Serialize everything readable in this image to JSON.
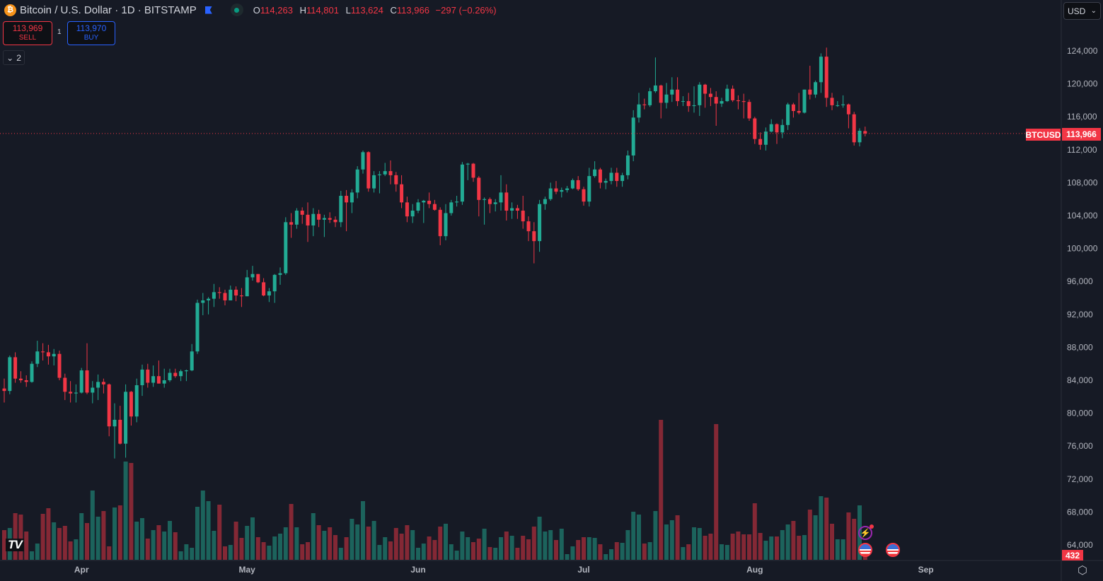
{
  "header": {
    "symbol_icon": "bitcoin-icon",
    "title": "Bitcoin / U.S. Dollar · 1D · BITSTAMP",
    "ohlc": {
      "o_label": "O",
      "o": "114,263",
      "h_label": "H",
      "h": "114,801",
      "l_label": "L",
      "l": "113,624",
      "c_label": "C",
      "c": "113,966",
      "change": "−297 (−0.26%)"
    }
  },
  "trade": {
    "sell_price": "113,969",
    "sell_label": "SELL",
    "qty": "1",
    "buy_price": "113,970",
    "buy_label": "BUY"
  },
  "indicators_toggle": "2",
  "currency": "USD",
  "price_label": {
    "symbol": "BTCUSD",
    "value": "113,966"
  },
  "volume_label": "432",
  "colors": {
    "up": "#22ab94",
    "down": "#f23645",
    "background": "#161a25"
  },
  "chart_data": {
    "type": "candlestick",
    "unit": "USD thousands",
    "ylim": [
      64,
      124
    ],
    "yticks": [
      "124,000",
      "120,000",
      "116,000",
      "112,000",
      "108,000",
      "104,000",
      "100,000",
      "96,000",
      "92,000",
      "88,000",
      "84,000",
      "80,000",
      "76,000",
      "72,000",
      "68,000",
      "64,000"
    ],
    "ytick_values": [
      124,
      120,
      116,
      112,
      108,
      104,
      100,
      96,
      92,
      88,
      84,
      80,
      76,
      72,
      68,
      64
    ],
    "xticks": [
      {
        "label": "Apr",
        "index": 14
      },
      {
        "label": "May",
        "index": 44
      },
      {
        "label": "Jun",
        "index": 75
      },
      {
        "label": "Jul",
        "index": 105
      },
      {
        "label": "Aug",
        "index": 136
      },
      {
        "label": "Sep",
        "index": 167
      }
    ],
    "last_price": 113.966,
    "candles": [
      [
        83.0,
        84.2,
        81.3,
        82.7
      ],
      [
        82.7,
        87.0,
        82.3,
        86.8
      ],
      [
        86.8,
        87.4,
        83.7,
        84.2
      ],
      [
        84.2,
        85.1,
        83.7,
        84.0
      ],
      [
        84.0,
        84.6,
        83.2,
        83.8
      ],
      [
        83.8,
        86.3,
        83.7,
        86.0
      ],
      [
        86.0,
        88.8,
        85.6,
        87.5
      ],
      [
        87.5,
        88.5,
        86.4,
        87.4
      ],
      [
        87.4,
        88.3,
        85.9,
        86.9
      ],
      [
        86.9,
        87.8,
        85.8,
        87.2
      ],
      [
        87.2,
        87.6,
        84.0,
        84.3
      ],
      [
        84.3,
        84.8,
        81.6,
        82.6
      ],
      [
        82.6,
        83.9,
        81.3,
        82.4
      ],
      [
        82.4,
        83.5,
        81.3,
        82.5
      ],
      [
        82.5,
        85.5,
        82.4,
        85.2
      ],
      [
        85.2,
        88.5,
        82.3,
        82.5
      ],
      [
        82.5,
        83.9,
        81.2,
        83.1
      ],
      [
        83.1,
        84.7,
        81.6,
        83.8
      ],
      [
        83.8,
        84.2,
        82.4,
        83.5
      ],
      [
        83.5,
        83.6,
        77.2,
        78.4
      ],
      [
        78.4,
        81.2,
        74.5,
        79.2
      ],
      [
        79.2,
        80.9,
        76.2,
        76.3
      ],
      [
        76.3,
        83.5,
        74.6,
        82.6
      ],
      [
        82.6,
        82.7,
        78.5,
        79.6
      ],
      [
        79.6,
        84.2,
        78.9,
        83.4
      ],
      [
        83.4,
        85.9,
        82.1,
        85.3
      ],
      [
        85.3,
        86.0,
        83.1,
        83.7
      ],
      [
        83.7,
        85.8,
        83.2,
        84.5
      ],
      [
        84.5,
        86.4,
        83.6,
        83.6
      ],
      [
        83.6,
        85.4,
        83.1,
        84.0
      ],
      [
        84.0,
        85.4,
        83.8,
        84.9
      ],
      [
        84.9,
        85.4,
        84.3,
        84.5
      ],
      [
        84.5,
        85.3,
        83.9,
        85.1
      ],
      [
        85.1,
        85.3,
        83.9,
        85.2
      ],
      [
        85.2,
        88.4,
        85.1,
        87.5
      ],
      [
        87.5,
        93.8,
        87.2,
        93.4
      ],
      [
        93.4,
        94.6,
        91.9,
        93.7
      ],
      [
        93.7,
        94.1,
        92.0,
        93.9
      ],
      [
        93.9,
        95.7,
        92.9,
        94.7
      ],
      [
        94.7,
        95.3,
        93.9,
        94.6
      ],
      [
        94.6,
        95.0,
        93.1,
        93.7
      ],
      [
        93.7,
        95.5,
        93.7,
        95.0
      ],
      [
        95.0,
        95.4,
        93.6,
        94.3
      ],
      [
        94.3,
        95.2,
        92.9,
        94.2
      ],
      [
        94.2,
        97.4,
        94.2,
        96.5
      ],
      [
        96.5,
        97.9,
        96.1,
        96.9
      ],
      [
        96.9,
        96.9,
        95.8,
        95.9
      ],
      [
        95.9,
        96.4,
        94.2,
        94.3
      ],
      [
        94.3,
        95.2,
        93.5,
        94.8
      ],
      [
        94.8,
        96.9,
        93.4,
        96.8
      ],
      [
        96.8,
        97.7,
        95.6,
        97.0
      ],
      [
        97.0,
        103.8,
        96.8,
        103.2
      ],
      [
        103.2,
        104.3,
        101.3,
        102.9
      ],
      [
        102.9,
        104.9,
        102.4,
        104.6
      ],
      [
        104.6,
        105.0,
        103.0,
        104.1
      ],
      [
        104.1,
        105.6,
        100.8,
        102.8
      ],
      [
        102.8,
        104.9,
        101.5,
        104.2
      ],
      [
        104.2,
        104.7,
        102.6,
        103.5
      ],
      [
        103.5,
        104.1,
        101.4,
        103.7
      ],
      [
        103.7,
        104.4,
        103.1,
        103.5
      ],
      [
        103.5,
        103.9,
        102.6,
        103.2
      ],
      [
        103.2,
        107.0,
        102.6,
        106.4
      ],
      [
        106.4,
        107.1,
        102.1,
        105.6
      ],
      [
        105.6,
        107.2,
        104.3,
        106.8
      ],
      [
        106.8,
        110.0,
        106.1,
        109.6
      ],
      [
        109.6,
        111.9,
        109.1,
        111.7
      ],
      [
        111.7,
        111.8,
        106.9,
        107.3
      ],
      [
        107.3,
        109.4,
        106.8,
        108.9
      ],
      [
        108.9,
        109.4,
        106.7,
        109.0
      ],
      [
        109.0,
        110.4,
        108.8,
        109.4
      ],
      [
        109.4,
        110.7,
        107.8,
        108.9
      ],
      [
        108.9,
        109.3,
        106.9,
        107.8
      ],
      [
        107.8,
        108.9,
        104.9,
        105.6
      ],
      [
        105.6,
        106.3,
        103.2,
        103.9
      ],
      [
        103.9,
        105.4,
        103.1,
        104.6
      ],
      [
        104.6,
        106.0,
        104.3,
        105.6
      ],
      [
        105.6,
        105.9,
        103.1,
        105.8
      ],
      [
        105.8,
        106.8,
        104.9,
        105.4
      ],
      [
        105.4,
        105.9,
        104.6,
        104.7
      ],
      [
        104.7,
        105.0,
        100.4,
        101.5
      ],
      [
        101.5,
        105.4,
        101.0,
        104.3
      ],
      [
        104.3,
        105.9,
        104.0,
        105.6
      ],
      [
        105.6,
        106.4,
        105.1,
        105.7
      ],
      [
        105.7,
        110.5,
        105.3,
        110.2
      ],
      [
        110.2,
        110.4,
        108.3,
        110.3
      ],
      [
        110.3,
        110.4,
        108.1,
        108.6
      ],
      [
        108.6,
        108.8,
        103.9,
        105.9
      ],
      [
        105.9,
        106.2,
        102.9,
        106.0
      ],
      [
        106.0,
        106.2,
        104.3,
        105.4
      ],
      [
        105.4,
        106.0,
        104.5,
        105.6
      ],
      [
        105.6,
        108.9,
        104.6,
        106.8
      ],
      [
        106.8,
        107.8,
        103.4,
        104.6
      ],
      [
        104.6,
        105.6,
        103.6,
        104.9
      ],
      [
        104.9,
        105.3,
        103.6,
        104.6
      ],
      [
        104.6,
        106.4,
        102.4,
        103.3
      ],
      [
        103.3,
        103.9,
        100.9,
        102.1
      ],
      [
        102.1,
        103.2,
        98.2,
        100.9
      ],
      [
        100.9,
        105.9,
        99.6,
        105.4
      ],
      [
        105.4,
        106.3,
        104.7,
        106.0
      ],
      [
        106.0,
        108.0,
        105.8,
        107.3
      ],
      [
        107.3,
        108.2,
        106.6,
        106.9
      ],
      [
        106.9,
        107.4,
        106.2,
        107.1
      ],
      [
        107.1,
        107.6,
        106.8,
        107.3
      ],
      [
        107.3,
        108.5,
        107.2,
        108.3
      ],
      [
        108.3,
        108.8,
        107.0,
        107.2
      ],
      [
        107.2,
        107.5,
        105.2,
        105.7
      ],
      [
        105.7,
        109.8,
        105.1,
        108.8
      ],
      [
        108.8,
        110.6,
        108.6,
        109.6
      ],
      [
        109.6,
        109.8,
        107.3,
        108.0
      ],
      [
        108.0,
        108.5,
        107.2,
        108.2
      ],
      [
        108.2,
        109.8,
        107.8,
        109.2
      ],
      [
        109.2,
        109.8,
        107.5,
        108.2
      ],
      [
        108.2,
        109.2,
        107.5,
        108.9
      ],
      [
        108.9,
        111.9,
        108.4,
        111.3
      ],
      [
        111.3,
        116.8,
        110.6,
        115.9
      ],
      [
        115.9,
        118.9,
        115.3,
        117.5
      ],
      [
        117.5,
        118.2,
        116.9,
        117.4
      ],
      [
        117.4,
        119.5,
        117.2,
        119.1
      ],
      [
        119.1,
        123.2,
        118.9,
        119.8
      ],
      [
        119.8,
        119.9,
        115.8,
        117.7
      ],
      [
        117.7,
        120.1,
        117.0,
        118.7
      ],
      [
        118.7,
        120.8,
        117.8,
        119.3
      ],
      [
        119.3,
        120.8,
        117.3,
        117.9
      ],
      [
        117.9,
        118.5,
        117.3,
        117.9
      ],
      [
        117.9,
        118.9,
        116.6,
        117.3
      ],
      [
        117.3,
        119.7,
        116.5,
        117.4
      ],
      [
        117.4,
        120.2,
        116.1,
        119.9
      ],
      [
        119.9,
        120.0,
        117.1,
        118.8
      ],
      [
        118.8,
        119.5,
        117.3,
        118.4
      ],
      [
        118.4,
        119.1,
        114.9,
        117.6
      ],
      [
        117.6,
        118.3,
        117.2,
        117.9
      ],
      [
        117.9,
        119.9,
        117.8,
        119.4
      ],
      [
        119.4,
        119.8,
        117.8,
        118.0
      ],
      [
        118.0,
        118.6,
        116.9,
        117.9
      ],
      [
        117.9,
        118.8,
        115.8,
        117.8
      ],
      [
        117.8,
        118.1,
        115.5,
        115.8
      ],
      [
        115.8,
        116.0,
        112.7,
        113.3
      ],
      [
        113.3,
        114.1,
        112.0,
        112.6
      ],
      [
        112.6,
        114.7,
        111.9,
        114.2
      ],
      [
        114.2,
        115.7,
        114.1,
        115.1
      ],
      [
        115.1,
        115.2,
        112.7,
        114.1
      ],
      [
        114.1,
        115.7,
        113.4,
        115.0
      ],
      [
        115.0,
        117.7,
        114.4,
        117.5
      ],
      [
        117.5,
        117.7,
        115.9,
        116.7
      ],
      [
        116.7,
        118.9,
        116.3,
        116.5
      ],
      [
        116.5,
        119.3,
        116.4,
        119.3
      ],
      [
        119.3,
        122.2,
        118.1,
        118.7
      ],
      [
        118.7,
        120.4,
        118.3,
        120.2
      ],
      [
        120.2,
        123.7,
        118.9,
        123.3
      ],
      [
        123.3,
        124.4,
        117.2,
        118.3
      ],
      [
        118.3,
        118.9,
        116.8,
        117.4
      ],
      [
        117.4,
        117.9,
        117.2,
        117.4
      ],
      [
        117.4,
        118.6,
        117.1,
        117.5
      ],
      [
        117.5,
        117.6,
        114.6,
        116.3
      ],
      [
        116.3,
        116.6,
        112.5,
        112.9
      ],
      [
        112.9,
        114.6,
        112.4,
        114.3
      ],
      [
        114.263,
        114.801,
        113.624,
        113.966
      ]
    ],
    "volumes": [
      1134,
      1215,
      1782,
      1728,
      1080,
      324,
      621,
      1755,
      1971,
      1431,
      1215,
      1296,
      702,
      783,
      1782,
      1404,
      2646,
      1647,
      1863,
      513,
      1998,
      2079,
      3753,
      3699,
      1458,
      1593,
      810,
      1134,
      1323,
      1080,
      1485,
      1053,
      324,
      594,
      459,
      2025,
      2646,
      2241,
      1107,
      2106,
      513,
      567,
      1458,
      837,
      1296,
      1620,
      864,
      675,
      540,
      891,
      999,
      1242,
      2133,
      1242,
      594,
      675,
      1782,
      1323,
      1107,
      1242,
      945,
      459,
      864,
      1566,
      1350,
      2241,
      1269,
      1485,
      567,
      864,
      702,
      1215,
      999,
      1323,
      1134,
      459,
      621,
      891,
      756,
      1269,
      1377,
      594,
      351,
      1080,
      864,
      675,
      810,
      1188,
      486,
      459,
      864,
      1080,
      918,
      459,
      918,
      783,
      1269,
      1647,
      1080,
      1134,
      756,
      1188,
      216,
      513,
      756,
      864,
      864,
      837,
      594,
      216,
      405,
      675,
      648,
      1134,
      1836,
      1728,
      621,
      675,
      1863,
      5346,
      1350,
      1512,
      1701,
      486,
      594,
      1242,
      1215,
      918,
      999,
      5184,
      594,
      567,
      999,
      1080,
      972,
      972,
      2160,
      1026,
      729,
      891,
      891,
      1134,
      1350,
      1485,
      918,
      945,
      1917,
      1701,
      2430,
      2376,
      1377,
      783,
      783,
      1809,
      1566,
      2079,
      432
    ]
  }
}
